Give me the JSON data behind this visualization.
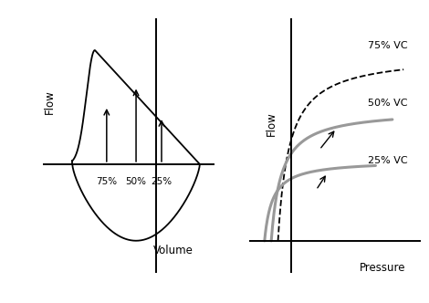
{
  "background_color": "#ffffff",
  "left_xlabel": "Volume",
  "left_ylabel": "Flow",
  "right_xlabel": "Pressure",
  "right_ylabel": "Flow",
  "label_75vc": "75% VC",
  "label_50vc": "50% VC",
  "label_25vc": "25% VC",
  "label_75": "75%",
  "label_50": "50%",
  "label_25": "25%"
}
